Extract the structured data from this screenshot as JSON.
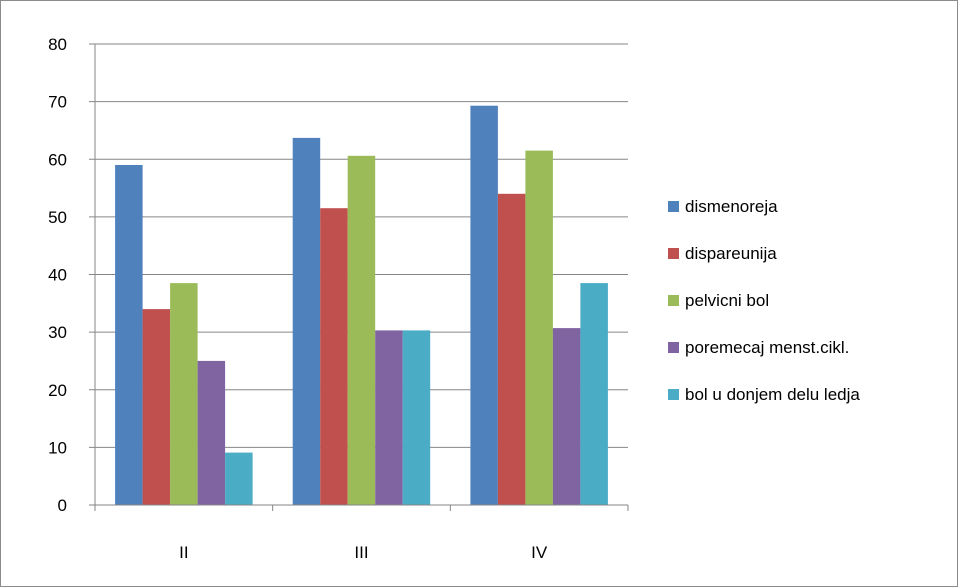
{
  "chart_data": {
    "type": "bar",
    "title": "",
    "xlabel": "",
    "ylabel": "",
    "ylim": [
      0,
      80
    ],
    "yticks": [
      0,
      10,
      20,
      30,
      40,
      50,
      60,
      70,
      80
    ],
    "grid": true,
    "legend_position": "right",
    "categories": [
      "II",
      "III",
      "IV"
    ],
    "series": [
      {
        "name": "dismenoreja",
        "color": "#4f81bd",
        "values": [
          59,
          63.7,
          69.3
        ]
      },
      {
        "name": "dispareunija",
        "color": "#c0504d",
        "values": [
          34,
          51.5,
          54
        ]
      },
      {
        "name": "pelvicni bol",
        "color": "#9bbb59",
        "values": [
          38.5,
          60.6,
          61.5
        ]
      },
      {
        "name": "poremecaj menst.cikl.",
        "color": "#8064a2",
        "values": [
          25,
          30.3,
          30.7
        ]
      },
      {
        "name": "bol u donjem delu ledja",
        "color": "#4bacc6",
        "values": [
          9.1,
          30.3,
          38.5
        ]
      }
    ]
  }
}
